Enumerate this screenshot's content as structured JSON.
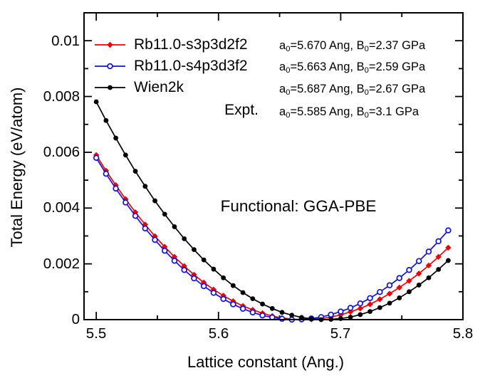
{
  "window": {
    "background": "#ffffff",
    "frame_color": "#000000"
  },
  "legend": {
    "expt_label": "Expt."
  },
  "annotations": {
    "functional": "Functional: GGA-PBE",
    "rows": [
      {
        "p0": "a",
        "s0": "0",
        "p1": "=5.670 Ang, B",
        "s1": "0",
        "p2": "=2.37 GPa"
      },
      {
        "p0": "a",
        "s0": "0",
        "p1": "=5.663 Ang, B",
        "s1": "0",
        "p2": "=2.59 GPa"
      },
      {
        "p0": "a",
        "s0": "0",
        "p1": "=5.687 Ang, B",
        "s1": "0",
        "p2": "=2.67 GPa"
      },
      {
        "p0": "a",
        "s0": "0",
        "p1": "=5.585 Ang, B",
        "s1": "0",
        "p2": "=3.1 GPa"
      }
    ]
  },
  "chart_data": {
    "type": "line",
    "title": "",
    "xlabel": "Lattice constant (Ang.)",
    "ylabel": "Total Energy (eV/atom)",
    "xlim": [
      5.49,
      5.8
    ],
    "ylim": [
      0,
      0.011
    ],
    "grid": false,
    "legend_position": "top-left-inside",
    "x_major_ticks": [
      5.5,
      5.6,
      5.7,
      5.8
    ],
    "x_tick_labels": [
      "5.5",
      "5.6",
      "5.7",
      "5.8"
    ],
    "x_minor_ticks": [
      5.55,
      5.65,
      5.75
    ],
    "y_major_ticks": [
      0,
      0.002,
      0.004,
      0.006,
      0.008,
      0.01
    ],
    "y_tick_labels": [
      "0",
      "0.002",
      "0.004",
      "0.006",
      "0.008",
      "0.01"
    ],
    "y_minor_ticks": [
      0.001,
      0.003,
      0.005,
      0.007,
      0.009
    ],
    "x": [
      5.5,
      5.508,
      5.516,
      5.524,
      5.532,
      5.54,
      5.548,
      5.556,
      5.564,
      5.572,
      5.58,
      5.588,
      5.596,
      5.604,
      5.612,
      5.62,
      5.628,
      5.636,
      5.644,
      5.652,
      5.66,
      5.668,
      5.676,
      5.684,
      5.692,
      5.7,
      5.708,
      5.716,
      5.724,
      5.732,
      5.74,
      5.748,
      5.756,
      5.764,
      5.772,
      5.78,
      5.788
    ],
    "series": [
      {
        "name": "Rb11.0-s3p3d2f2",
        "color": "#ee0000",
        "marker": "diamond",
        "a0_Ang": 5.67,
        "B0_GPa": 2.37,
        "values": [
          0.0059,
          0.00534,
          0.00482,
          0.00432,
          0.00385,
          0.00341,
          0.00299,
          0.00261,
          0.00225,
          0.00192,
          0.00161,
          0.00133,
          0.00108,
          0.00086,
          0.00066,
          0.00049,
          0.00035,
          0.00023,
          0.00013,
          6e-05,
          2e-05,
          0.0,
          1e-05,
          4e-05,
          9e-05,
          0.00017,
          0.00028,
          0.0004,
          0.00055,
          0.00073,
          0.00093,
          0.00115,
          0.00139,
          0.00165,
          0.00194,
          0.00225,
          0.00258
        ]
      },
      {
        "name": "Rb11.0-s4p3d3f2",
        "color": "#1111dd",
        "marker": "open-circle",
        "a0_Ang": 5.663,
        "B0_GPa": 2.59,
        "values": [
          0.0058,
          0.00523,
          0.0047,
          0.0042,
          0.00372,
          0.00327,
          0.00286,
          0.00247,
          0.00211,
          0.00178,
          0.00148,
          0.0012,
          0.00096,
          0.00074,
          0.00055,
          0.00039,
          0.00026,
          0.00015,
          8e-05,
          3e-05,
          0.0,
          1e-05,
          4e-05,
          9e-05,
          0.00018,
          0.00029,
          0.00042,
          0.00058,
          0.00077,
          0.00099,
          0.00123,
          0.00149,
          0.00178,
          0.0021,
          0.00244,
          0.00281,
          0.0032
        ]
      },
      {
        "name": "Wien2k",
        "color": "#000000",
        "marker": "circle",
        "a0_Ang": 5.687,
        "B0_GPa": 2.67,
        "values": [
          0.00781,
          0.00714,
          0.00651,
          0.0059,
          0.00532,
          0.00478,
          0.00426,
          0.00378,
          0.00333,
          0.0029,
          0.00251,
          0.00214,
          0.00181,
          0.0015,
          0.00122,
          0.00097,
          0.00075,
          0.00056,
          0.0004,
          0.00026,
          0.00016,
          8e-05,
          3e-05,
          0.0,
          1e-05,
          4e-05,
          9e-05,
          0.00018,
          0.00029,
          0.00043,
          0.00059,
          0.00078,
          0.001,
          0.00124,
          0.0015,
          0.0018,
          0.00212
        ]
      }
    ],
    "expt": {
      "label": "Expt.",
      "a0_Ang": 5.585,
      "B0_GPa": 3.1
    }
  }
}
